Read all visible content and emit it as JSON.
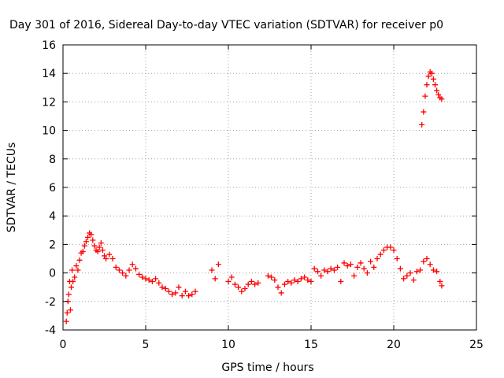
{
  "chart_data": {
    "type": "scatter",
    "title": "Day 301 of 2016, Sidereal Day-to-day VTEC variation (SDTVAR) for receiver p0",
    "xlabel": "GPS time / hours",
    "ylabel": "SDTVAR / TECUs",
    "xlim": [
      0,
      25
    ],
    "ylim": [
      -4,
      16
    ],
    "xticks": [
      "0",
      "5",
      "10",
      "15",
      "20",
      "25"
    ],
    "yticks": [
      "-4",
      "-2",
      "0",
      "2",
      "4",
      "6",
      "8",
      "10",
      "12",
      "14",
      "16"
    ],
    "grid": true,
    "marker": "+",
    "color": "#ff0000",
    "series": [
      {
        "name": "SDTVAR",
        "points": [
          [
            0.2,
            -3.4
          ],
          [
            0.25,
            -2.8
          ],
          [
            0.3,
            -2.0
          ],
          [
            0.35,
            -1.5
          ],
          [
            0.4,
            -0.6
          ],
          [
            0.45,
            -2.6
          ],
          [
            0.5,
            -1.0
          ],
          [
            0.55,
            0.2
          ],
          [
            0.6,
            -0.6
          ],
          [
            0.7,
            -0.3
          ],
          [
            0.8,
            0.5
          ],
          [
            0.9,
            0.2
          ],
          [
            1.0,
            0.9
          ],
          [
            1.1,
            1.4
          ],
          [
            1.2,
            1.5
          ],
          [
            1.3,
            1.9
          ],
          [
            1.4,
            2.2
          ],
          [
            1.5,
            2.5
          ],
          [
            1.6,
            2.8
          ],
          [
            1.7,
            2.7
          ],
          [
            1.8,
            2.3
          ],
          [
            1.9,
            1.9
          ],
          [
            2.0,
            1.6
          ],
          [
            2.1,
            1.5
          ],
          [
            2.2,
            1.8
          ],
          [
            2.3,
            2.1
          ],
          [
            2.4,
            1.6
          ],
          [
            2.5,
            1.2
          ],
          [
            2.6,
            1.0
          ],
          [
            2.8,
            1.3
          ],
          [
            3.0,
            1.0
          ],
          [
            3.2,
            0.4
          ],
          [
            3.4,
            0.2
          ],
          [
            3.6,
            0.0
          ],
          [
            3.8,
            -0.2
          ],
          [
            4.0,
            0.2
          ],
          [
            4.2,
            0.6
          ],
          [
            4.4,
            0.3
          ],
          [
            4.6,
            -0.1
          ],
          [
            4.8,
            -0.3
          ],
          [
            5.0,
            -0.4
          ],
          [
            5.2,
            -0.5
          ],
          [
            5.4,
            -0.6
          ],
          [
            5.6,
            -0.4
          ],
          [
            5.8,
            -0.7
          ],
          [
            6.0,
            -1.0
          ],
          [
            6.2,
            -1.1
          ],
          [
            6.4,
            -1.3
          ],
          [
            6.6,
            -1.5
          ],
          [
            6.8,
            -1.4
          ],
          [
            7.0,
            -1.0
          ],
          [
            7.2,
            -1.6
          ],
          [
            7.4,
            -1.3
          ],
          [
            7.6,
            -1.6
          ],
          [
            7.8,
            -1.5
          ],
          [
            8.0,
            -1.3
          ],
          [
            9.0,
            0.2
          ],
          [
            9.2,
            -0.4
          ],
          [
            9.4,
            0.6
          ],
          [
            10.0,
            -0.6
          ],
          [
            10.2,
            -0.3
          ],
          [
            10.4,
            -0.8
          ],
          [
            10.6,
            -1.0
          ],
          [
            10.8,
            -1.3
          ],
          [
            11.0,
            -1.1
          ],
          [
            11.2,
            -0.8
          ],
          [
            11.4,
            -0.6
          ],
          [
            11.6,
            -0.8
          ],
          [
            11.8,
            -0.7
          ],
          [
            12.4,
            -0.2
          ],
          [
            12.6,
            -0.3
          ],
          [
            12.8,
            -0.5
          ],
          [
            13.0,
            -1.0
          ],
          [
            13.2,
            -1.4
          ],
          [
            13.4,
            -0.8
          ],
          [
            13.6,
            -0.6
          ],
          [
            13.8,
            -0.7
          ],
          [
            14.0,
            -0.5
          ],
          [
            14.2,
            -0.6
          ],
          [
            14.4,
            -0.4
          ],
          [
            14.6,
            -0.3
          ],
          [
            14.8,
            -0.5
          ],
          [
            15.0,
            -0.6
          ],
          [
            15.2,
            0.3
          ],
          [
            15.4,
            0.1
          ],
          [
            15.6,
            -0.2
          ],
          [
            15.8,
            0.2
          ],
          [
            16.0,
            0.1
          ],
          [
            16.2,
            0.3
          ],
          [
            16.4,
            0.2
          ],
          [
            16.6,
            0.4
          ],
          [
            16.8,
            -0.6
          ],
          [
            17.0,
            0.7
          ],
          [
            17.2,
            0.5
          ],
          [
            17.4,
            0.6
          ],
          [
            17.6,
            -0.2
          ],
          [
            17.8,
            0.4
          ],
          [
            18.0,
            0.7
          ],
          [
            18.2,
            0.3
          ],
          [
            18.4,
            0.0
          ],
          [
            18.6,
            0.8
          ],
          [
            18.8,
            0.4
          ],
          [
            19.0,
            1.0
          ],
          [
            19.2,
            1.3
          ],
          [
            19.4,
            1.6
          ],
          [
            19.6,
            1.8
          ],
          [
            19.8,
            1.8
          ],
          [
            20.0,
            1.6
          ],
          [
            20.2,
            1.0
          ],
          [
            20.4,
            0.3
          ],
          [
            20.6,
            -0.4
          ],
          [
            20.8,
            -0.2
          ],
          [
            21.0,
            0.0
          ],
          [
            21.2,
            -0.5
          ],
          [
            21.4,
            0.1
          ],
          [
            21.6,
            0.2
          ],
          [
            21.8,
            0.8
          ],
          [
            22.0,
            1.0
          ],
          [
            22.2,
            0.6
          ],
          [
            22.4,
            0.2
          ],
          [
            22.6,
            0.1
          ],
          [
            22.8,
            -0.6
          ],
          [
            22.9,
            -0.9
          ],
          [
            21.7,
            10.4
          ],
          [
            21.8,
            11.3
          ],
          [
            21.9,
            12.4
          ],
          [
            22.0,
            13.2
          ],
          [
            22.1,
            13.8
          ],
          [
            22.2,
            14.1
          ],
          [
            22.3,
            14.0
          ],
          [
            22.4,
            13.6
          ],
          [
            22.5,
            13.2
          ],
          [
            22.6,
            12.8
          ],
          [
            22.7,
            12.5
          ],
          [
            22.8,
            12.3
          ],
          [
            22.9,
            12.2
          ]
        ]
      }
    ]
  }
}
